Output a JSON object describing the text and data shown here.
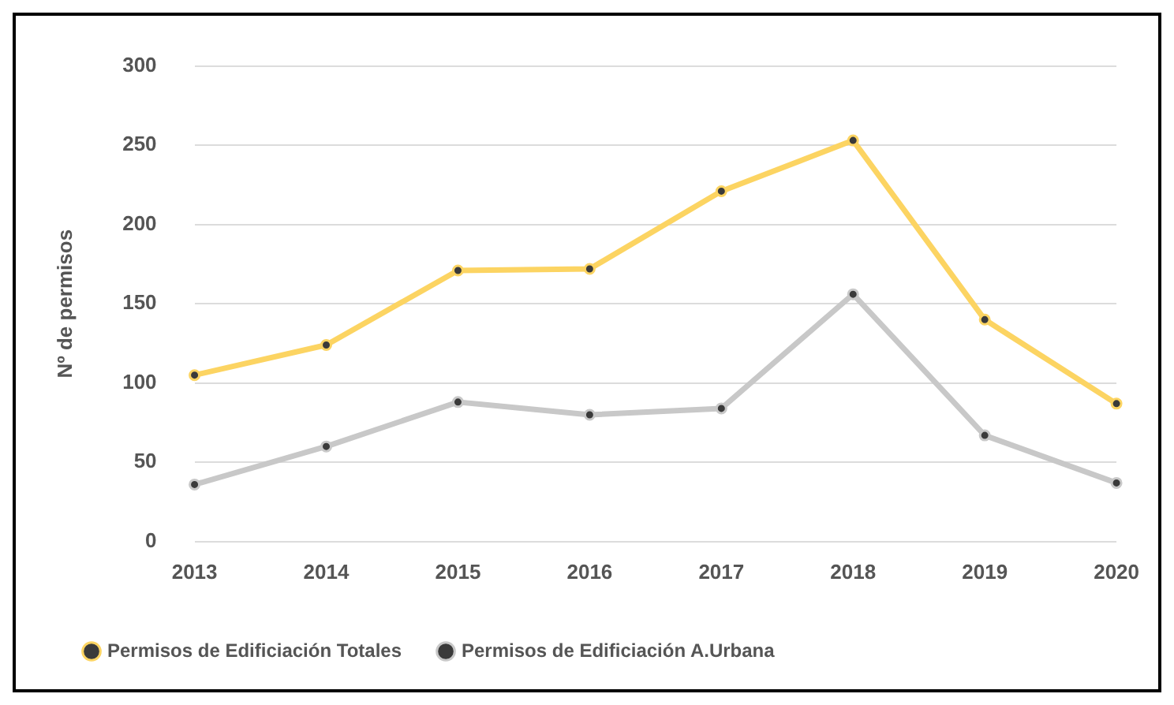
{
  "chart_data": {
    "type": "line",
    "ylabel": "Nº de permisos",
    "categories": [
      "2013",
      "2014",
      "2015",
      "2016",
      "2017",
      "2018",
      "2019",
      "2020"
    ],
    "series": [
      {
        "name": "Permisos de Edificiación Totales",
        "color": "#fcd462",
        "values": [
          105,
          124,
          171,
          172,
          221,
          253,
          140,
          87
        ]
      },
      {
        "name": "Permisos de Edificiación A.Urbana",
        "color": "#c8c8c8",
        "values": [
          36,
          60,
          88,
          80,
          84,
          156,
          67,
          37
        ]
      }
    ],
    "ylim": [
      0,
      300
    ],
    "yticks": [
      0,
      50,
      100,
      150,
      200,
      250,
      300
    ],
    "grid": "y",
    "legend": "bottom",
    "marker": "circle",
    "line_style": "solid"
  }
}
